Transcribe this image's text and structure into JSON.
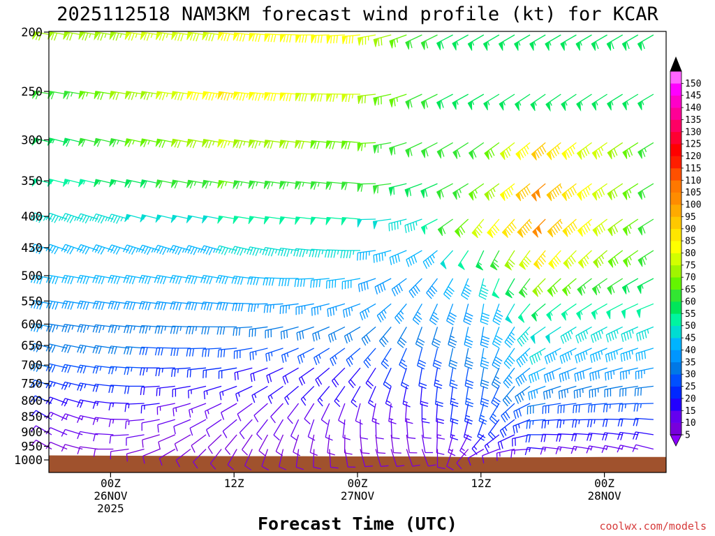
{
  "chart_data": {
    "type": "wind_profile",
    "title": "2025112518 NAM3KM forecast wind profile (kt) for KCAR",
    "xlabel": "Forecast Time (UTC)",
    "credit": "coolwx.com/models",
    "y_levels": [
      200,
      250,
      300,
      350,
      400,
      450,
      500,
      550,
      600,
      650,
      700,
      750,
      800,
      850,
      900,
      950,
      1000
    ],
    "y_tick_labels": [
      "200",
      "250",
      "300",
      "350",
      "400",
      "450",
      "500",
      "550",
      "600",
      "650",
      "700",
      "750",
      "800",
      "850",
      "900",
      "950",
      "1000"
    ],
    "ylim_hpa": [
      200,
      1000
    ],
    "forecast_hours_range": [
      -6,
      54
    ],
    "x_ticks": [
      {
        "hour": 0,
        "lines": [
          "00Z",
          "26NOV",
          "2025"
        ]
      },
      {
        "hour": 12,
        "lines": [
          "12Z"
        ]
      },
      {
        "hour": 24,
        "lines": [
          "00Z",
          "27NOV"
        ]
      },
      {
        "hour": 36,
        "lines": [
          "12Z"
        ]
      },
      {
        "hour": 48,
        "lines": [
          "00Z",
          "28NOV"
        ]
      }
    ],
    "colorbar": {
      "levels": [
        5,
        10,
        15,
        20,
        25,
        30,
        35,
        40,
        45,
        50,
        55,
        60,
        65,
        70,
        75,
        80,
        85,
        90,
        95,
        100,
        105,
        110,
        115,
        120,
        125,
        130,
        135,
        140,
        145,
        150
      ],
      "labels": [
        "5",
        "10",
        "15",
        "20",
        "25",
        "30",
        "35",
        "40",
        "45",
        "50",
        "55",
        "60",
        "65",
        "70",
        "75",
        "80",
        "85",
        "90",
        "95",
        "100",
        "105",
        "110",
        "115",
        "120",
        "125",
        "130",
        "135",
        "140",
        "145",
        "150"
      ],
      "colors": [
        "#7800dc",
        "#6400f0",
        "#2300ff",
        "#0028ff",
        "#0050ff",
        "#0078e6",
        "#0096ff",
        "#00b4ff",
        "#00dcd2",
        "#00f5a0",
        "#00e65a",
        "#32e632",
        "#64f500",
        "#a0f500",
        "#d2ff00",
        "#ffff00",
        "#ffe600",
        "#ffc800",
        "#ffaa00",
        "#ff8c00",
        "#ff7800",
        "#ff5000",
        "#ff1e00",
        "#ff0000",
        "#ff0032",
        "#ff0064",
        "#ff0096",
        "#ff00c8",
        "#ff00ff",
        "#ff64ff"
      ],
      "under_color": "#8c00ff",
      "over_color": "#000000"
    },
    "barb_hours": [
      -6,
      -4.5,
      -3,
      -1.5,
      0,
      1.5,
      3,
      4.5,
      6,
      7.5,
      9,
      10.5,
      12,
      13.5,
      15,
      16.5,
      18,
      19.5,
      21,
      22.5,
      24,
      25.5,
      27,
      28.5,
      30,
      31.5,
      33,
      34.5,
      36,
      37.5,
      39,
      40.5,
      42,
      43.5,
      45,
      46.5,
      48,
      49.5,
      51,
      52.5
    ],
    "wind_direction_keyframes": {
      "hours": [
        -6,
        12,
        24,
        30,
        36,
        42,
        54
      ],
      "by_level": {
        "200": [
          280,
          278,
          265,
          245,
          240,
          240,
          240
        ],
        "250": [
          280,
          278,
          270,
          245,
          240,
          235,
          240
        ],
        "300": [
          285,
          280,
          275,
          245,
          235,
          230,
          240
        ],
        "350": [
          285,
          280,
          275,
          250,
          235,
          230,
          240
        ],
        "400": [
          290,
          280,
          275,
          250,
          220,
          225,
          240
        ],
        "450": [
          290,
          285,
          270,
          240,
          205,
          220,
          240
        ],
        "500": [
          280,
          280,
          260,
          225,
          195,
          225,
          245
        ],
        "550": [
          280,
          275,
          250,
          210,
          190,
          230,
          250
        ],
        "600": [
          280,
          270,
          240,
          200,
          190,
          235,
          250
        ],
        "650": [
          285,
          265,
          230,
          195,
          190,
          240,
          255
        ],
        "700": [
          285,
          260,
          220,
          190,
          190,
          245,
          260
        ],
        "750": [
          290,
          250,
          210,
          185,
          190,
          250,
          265
        ],
        "800": [
          295,
          240,
          195,
          180,
          195,
          260,
          270
        ],
        "850": [
          300,
          230,
          180,
          175,
          200,
          265,
          275
        ],
        "900": [
          300,
          220,
          175,
          170,
          220,
          270,
          280
        ],
        "950": [
          300,
          210,
          165,
          160,
          240,
          275,
          285
        ]
      }
    },
    "wind_speed_keyframes_kt": {
      "hours": [
        -6,
        12,
        24,
        30,
        36,
        42,
        54
      ],
      "by_level": {
        "200": [
          70,
          80,
          82,
          62,
          55,
          55,
          60
        ],
        "250": [
          60,
          85,
          75,
          62,
          55,
          55,
          55
        ],
        "300": [
          55,
          75,
          68,
          60,
          60,
          90,
          60
        ],
        "350": [
          50,
          65,
          62,
          58,
          65,
          100,
          55
        ],
        "400": [
          45,
          50,
          50,
          45,
          75,
          100,
          55
        ],
        "450": [
          40,
          45,
          45,
          40,
          55,
          85,
          60
        ],
        "500": [
          40,
          40,
          40,
          38,
          45,
          70,
          55
        ],
        "550": [
          38,
          38,
          35,
          35,
          40,
          55,
          50
        ],
        "600": [
          35,
          32,
          30,
          30,
          38,
          48,
          45
        ],
        "650": [
          32,
          28,
          25,
          28,
          35,
          45,
          42
        ],
        "700": [
          30,
          20,
          18,
          22,
          32,
          40,
          35
        ],
        "750": [
          25,
          15,
          15,
          18,
          28,
          35,
          30
        ],
        "800": [
          20,
          12,
          12,
          15,
          25,
          30,
          25
        ],
        "850": [
          15,
          10,
          10,
          12,
          20,
          25,
          20
        ],
        "900": [
          12,
          8,
          8,
          10,
          15,
          20,
          18
        ],
        "950": [
          8,
          8,
          8,
          8,
          10,
          15,
          12
        ]
      }
    },
    "surface_pressure_hpa": [
      {
        "hour": -6,
        "p": 983
      },
      {
        "hour": 6,
        "p": 985
      },
      {
        "hour": 12,
        "p": 986
      },
      {
        "hour": 18,
        "p": 986
      },
      {
        "hour": 24,
        "p": 987
      },
      {
        "hour": 30,
        "p": 987
      },
      {
        "hour": 36,
        "p": 990
      },
      {
        "hour": 42,
        "p": 990
      },
      {
        "hour": 48,
        "p": 989
      },
      {
        "hour": 54,
        "p": 989
      }
    ],
    "surface_color": "#a0522d"
  }
}
